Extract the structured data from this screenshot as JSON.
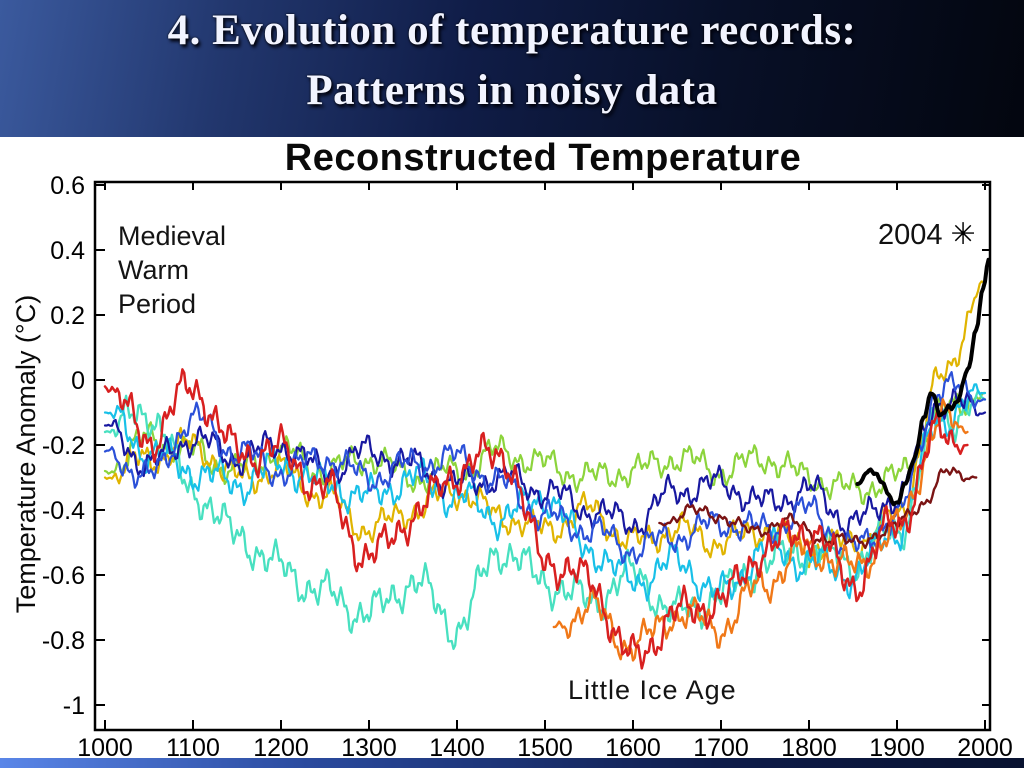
{
  "slide": {
    "title_line1": "4. Evolution of temperature records:",
    "title_line2": "Patterns in noisy data"
  },
  "chart_data": {
    "type": "line",
    "title": "Reconstructed Temperature",
    "xlabel": "",
    "ylabel": "Temperature Anomaly (°C)",
    "xlim": [
      988,
      2006
    ],
    "ylim": [
      -1.08,
      0.61
    ],
    "grid": false,
    "legend": "none",
    "x_ticks": [
      1000,
      1100,
      1200,
      1300,
      1400,
      1500,
      1600,
      1700,
      1800,
      1900,
      2000
    ],
    "y_ticks": [
      0.6,
      0.4,
      0.2,
      0,
      -0.2,
      -0.4,
      -0.6,
      -0.8,
      -1
    ],
    "annotations": {
      "medieval": [
        "Medieval",
        "Warm",
        "Period"
      ],
      "little_ice_age": "Little Ice Age",
      "year_label": "2004",
      "asterisk": "✳"
    },
    "series": [
      {
        "name": "light-green-proxy",
        "color": "#8cd43c",
        "width": 2.2,
        "noise": 0.06,
        "x": [
          1000,
          1050,
          1100,
          1150,
          1200,
          1250,
          1300,
          1350,
          1400,
          1450,
          1500,
          1550,
          1600,
          1650,
          1700,
          1750,
          1800,
          1850,
          1900,
          1950,
          2000
        ],
        "y": [
          -0.28,
          -0.18,
          -0.22,
          -0.28,
          -0.22,
          -0.28,
          -0.24,
          -0.3,
          -0.28,
          -0.22,
          -0.26,
          -0.3,
          -0.28,
          -0.24,
          -0.28,
          -0.24,
          -0.3,
          -0.34,
          -0.3,
          -0.1,
          -0.04
        ]
      },
      {
        "name": "gold-proxy",
        "color": "#e0b400",
        "width": 2.2,
        "noise": 0.06,
        "x": [
          1000,
          1050,
          1100,
          1150,
          1200,
          1250,
          1300,
          1350,
          1400,
          1450,
          1500,
          1550,
          1600,
          1650,
          1700,
          1750,
          1800,
          1850,
          1900,
          1950,
          2000
        ],
        "y": [
          -0.3,
          -0.24,
          -0.2,
          -0.3,
          -0.28,
          -0.36,
          -0.46,
          -0.4,
          -0.34,
          -0.42,
          -0.46,
          -0.4,
          -0.5,
          -0.46,
          -0.5,
          -0.46,
          -0.52,
          -0.5,
          -0.42,
          0.0,
          0.3
        ]
      },
      {
        "name": "turquoise-proxy",
        "color": "#48e0c0",
        "width": 2.3,
        "noise": 0.08,
        "x": [
          1000,
          1050,
          1100,
          1150,
          1200,
          1250,
          1300,
          1350,
          1400,
          1450,
          1500,
          1550,
          1600,
          1650,
          1700,
          1750,
          1800,
          1850,
          1900,
          1950,
          2000
        ],
        "y": [
          -0.16,
          -0.1,
          -0.34,
          -0.48,
          -0.58,
          -0.66,
          -0.72,
          -0.62,
          -0.76,
          -0.52,
          -0.62,
          -0.68,
          -0.6,
          -0.72,
          -0.66,
          -0.56,
          -0.52,
          -0.56,
          -0.46,
          -0.12,
          -0.06
        ]
      },
      {
        "name": "cyan-proxy",
        "color": "#18c0e8",
        "width": 2.2,
        "noise": 0.07,
        "x": [
          1000,
          1050,
          1100,
          1150,
          1200,
          1250,
          1300,
          1350,
          1400,
          1450,
          1500,
          1550,
          1600,
          1650,
          1700,
          1750,
          1800,
          1850,
          1900,
          1950,
          2000
        ],
        "y": [
          -0.1,
          -0.22,
          -0.28,
          -0.32,
          -0.26,
          -0.32,
          -0.36,
          -0.3,
          -0.36,
          -0.42,
          -0.36,
          -0.52,
          -0.62,
          -0.56,
          -0.66,
          -0.52,
          -0.56,
          -0.6,
          -0.46,
          -0.12,
          -0.04
        ]
      },
      {
        "name": "navy-proxy",
        "color": "#1818a0",
        "width": 2.2,
        "noise": 0.06,
        "x": [
          1000,
          1050,
          1100,
          1150,
          1200,
          1250,
          1300,
          1350,
          1400,
          1450,
          1500,
          1550,
          1600,
          1650,
          1700,
          1750,
          1800,
          1850,
          1900,
          1950,
          2000
        ],
        "y": [
          -0.14,
          -0.26,
          -0.18,
          -0.24,
          -0.2,
          -0.28,
          -0.22,
          -0.26,
          -0.32,
          -0.3,
          -0.34,
          -0.4,
          -0.44,
          -0.34,
          -0.32,
          -0.38,
          -0.34,
          -0.44,
          -0.36,
          -0.06,
          -0.1
        ]
      },
      {
        "name": "blue-proxy",
        "color": "#2b50d8",
        "width": 2.2,
        "noise": 0.06,
        "x": [
          1000,
          1050,
          1100,
          1150,
          1200,
          1250,
          1300,
          1350,
          1400,
          1450,
          1500,
          1550,
          1600,
          1650,
          1700,
          1750,
          1800,
          1850,
          1900,
          1950,
          2000
        ],
        "y": [
          -0.22,
          -0.3,
          -0.12,
          -0.22,
          -0.28,
          -0.24,
          -0.3,
          -0.26,
          -0.24,
          -0.32,
          -0.42,
          -0.46,
          -0.52,
          -0.48,
          -0.44,
          -0.46,
          -0.4,
          -0.52,
          -0.42,
          -0.02,
          -0.06
        ]
      },
      {
        "name": "orange-proxy",
        "color": "#f07818",
        "width": 2.4,
        "noise": 0.07,
        "x": [
          1510,
          1550,
          1600,
          1650,
          1700,
          1750,
          1800,
          1850,
          1900,
          1950,
          1980
        ],
        "y": [
          -0.76,
          -0.7,
          -0.82,
          -0.72,
          -0.76,
          -0.62,
          -0.52,
          -0.58,
          -0.46,
          -0.12,
          -0.16
        ]
      },
      {
        "name": "maroon-proxy",
        "color": "#7a1414",
        "width": 2.4,
        "noise": 0.03,
        "x": [
          1630,
          1680,
          1730,
          1780,
          1830,
          1880,
          1930,
          1960,
          1990
        ],
        "y": [
          -0.44,
          -0.4,
          -0.46,
          -0.44,
          -0.5,
          -0.48,
          -0.38,
          -0.28,
          -0.3
        ]
      },
      {
        "name": "red-proxy",
        "color": "#d82020",
        "width": 2.5,
        "noise": 0.08,
        "x": [
          1000,
          1050,
          1100,
          1150,
          1200,
          1250,
          1300,
          1350,
          1400,
          1450,
          1500,
          1550,
          1600,
          1650,
          1700,
          1750,
          1800,
          1850,
          1900,
          1950,
          1980
        ],
        "y": [
          -0.02,
          -0.18,
          -0.02,
          -0.22,
          -0.22,
          -0.34,
          -0.55,
          -0.42,
          -0.28,
          -0.22,
          -0.55,
          -0.62,
          -0.86,
          -0.72,
          -0.68,
          -0.52,
          -0.46,
          -0.62,
          -0.44,
          -0.16,
          -0.2
        ]
      },
      {
        "name": "instrumental-black",
        "color": "#000000",
        "width": 4,
        "noise": 0.02,
        "x": [
          1855,
          1870,
          1885,
          1900,
          1910,
          1920,
          1930,
          1940,
          1950,
          1960,
          1970,
          1980,
          1990,
          1998,
          2004
        ],
        "y": [
          -0.32,
          -0.28,
          -0.33,
          -0.38,
          -0.3,
          -0.25,
          -0.12,
          -0.05,
          -0.1,
          -0.08,
          -0.05,
          0.02,
          0.15,
          0.28,
          0.37
        ]
      }
    ]
  }
}
